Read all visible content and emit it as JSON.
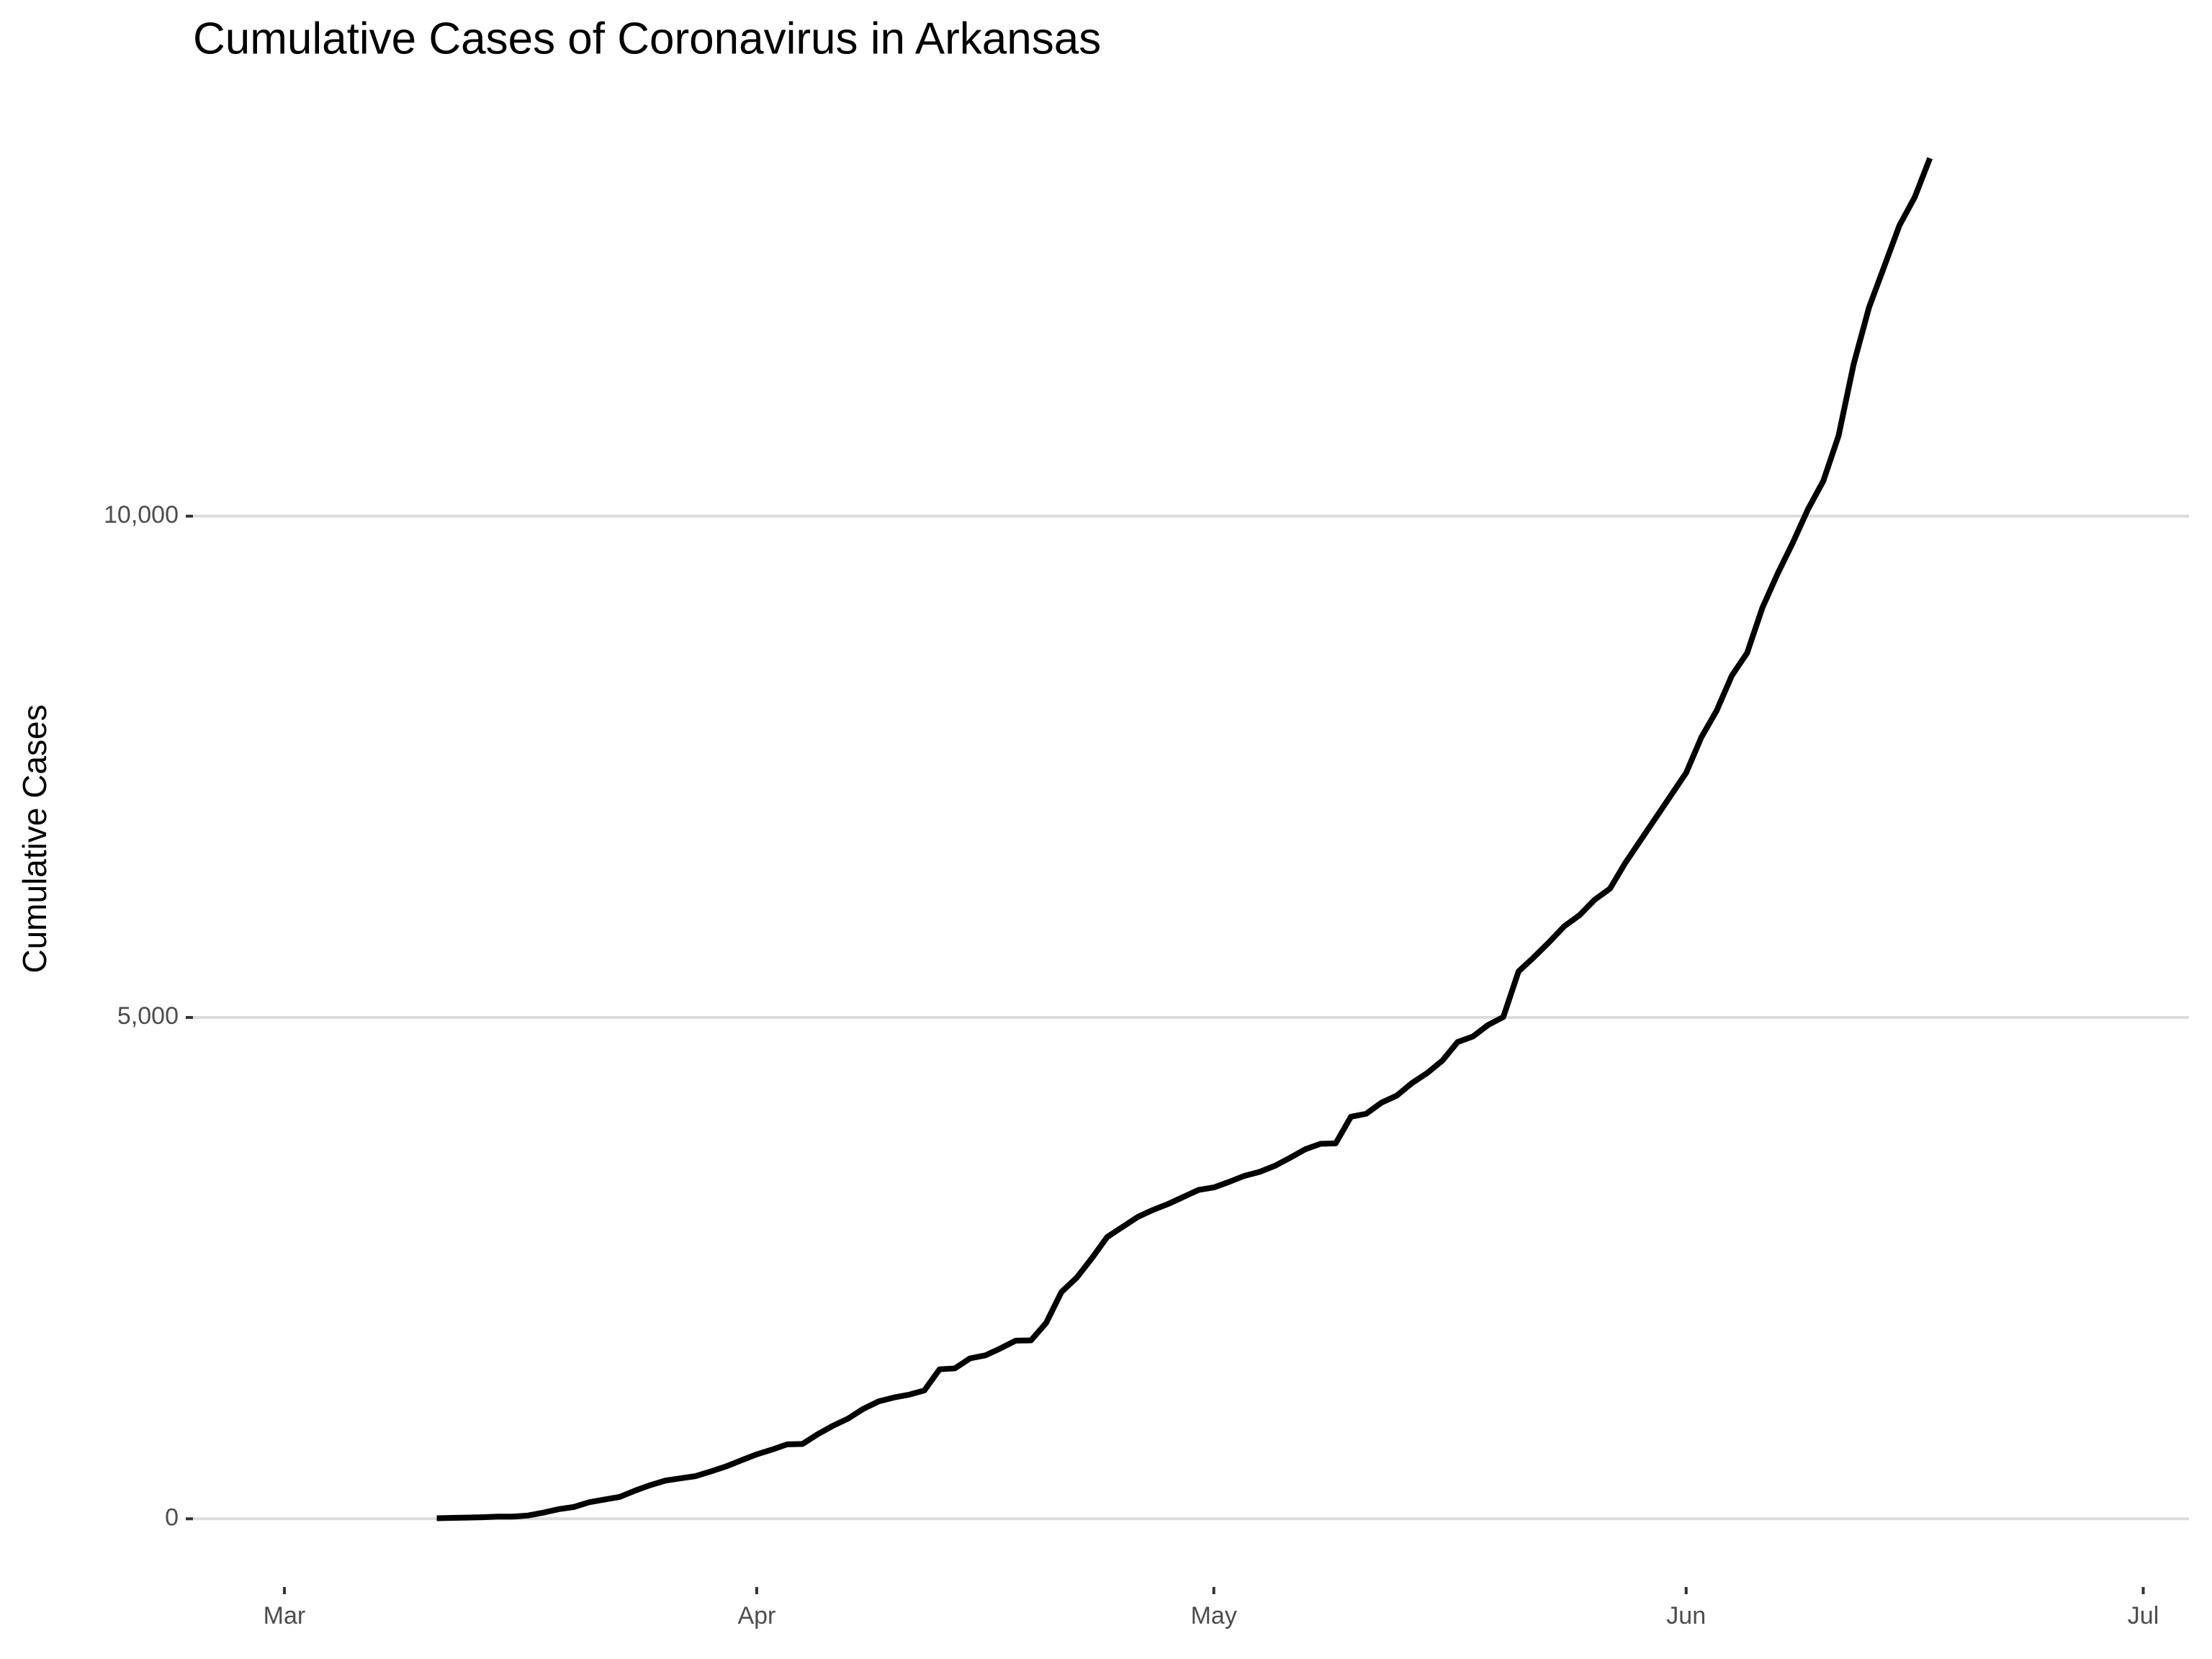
{
  "chart_data": {
    "type": "line",
    "title": "Cumulative Cases of Coronavirus in Arkansas",
    "y_label": "Cumulative Cases",
    "x": [
      10,
      11,
      12,
      13,
      14,
      15,
      16,
      17,
      18,
      19,
      20,
      21,
      22,
      23,
      24,
      25,
      26,
      27,
      28,
      29,
      30,
      31,
      32,
      33,
      34,
      35,
      36,
      37,
      38,
      39,
      40,
      41,
      42,
      43,
      44,
      45,
      46,
      47,
      48,
      49,
      50,
      51,
      52,
      53,
      54,
      55,
      56,
      57,
      58,
      59,
      60,
      61,
      62,
      63,
      64,
      65,
      66,
      67,
      68,
      69,
      70,
      71,
      72,
      73,
      74,
      75,
      76,
      77,
      78,
      79,
      80,
      81,
      82,
      83,
      84,
      85,
      86,
      87,
      88,
      89,
      90,
      91,
      92,
      93,
      94,
      95,
      96,
      97,
      98,
      99,
      100,
      101,
      102,
      103,
      104,
      105,
      106,
      107,
      108
    ],
    "values": [
      6,
      9,
      12,
      16,
      22,
      22,
      33,
      62,
      96,
      118,
      165,
      192,
      218,
      280,
      335,
      381,
      404,
      426,
      473,
      523,
      584,
      643,
      690,
      743,
      746,
      843,
      928,
      1000,
      1097,
      1171,
      1210,
      1238,
      1280,
      1491,
      1500,
      1600,
      1630,
      1700,
      1777,
      1780,
      1955,
      2262,
      2405,
      2600,
      2810,
      2910,
      3010,
      3080,
      3140,
      3210,
      3280,
      3305,
      3360,
      3420,
      3460,
      3520,
      3600,
      3685,
      3740,
      3745,
      4010,
      4040,
      4150,
      4220,
      4345,
      4445,
      4570,
      4755,
      4810,
      4925,
      5005,
      5460,
      5600,
      5750,
      5910,
      6020,
      6175,
      6285,
      6540,
      6765,
      6990,
      7215,
      7440,
      7795,
      8060,
      8410,
      8635,
      9085,
      9425,
      9735,
      10070,
      10350,
      10800,
      11520,
      12080,
      12490,
      12900,
      13180,
      13570
    ],
    "color": "#000000",
    "xlim": [
      -6,
      125
    ],
    "xticks": [
      {
        "value": 0,
        "label": "Mar"
      },
      {
        "value": 31,
        "label": "Apr"
      },
      {
        "value": 61,
        "label": "May"
      },
      {
        "value": 92,
        "label": "Jun"
      },
      {
        "value": 122,
        "label": "Jul"
      }
    ],
    "ylim": [
      -680,
      14250
    ],
    "yticks": [
      0,
      {
        "value": 5000,
        "label": "5,000"
      },
      {
        "value": 10000,
        "label": "10,000"
      }
    ],
    "grid": "y"
  }
}
